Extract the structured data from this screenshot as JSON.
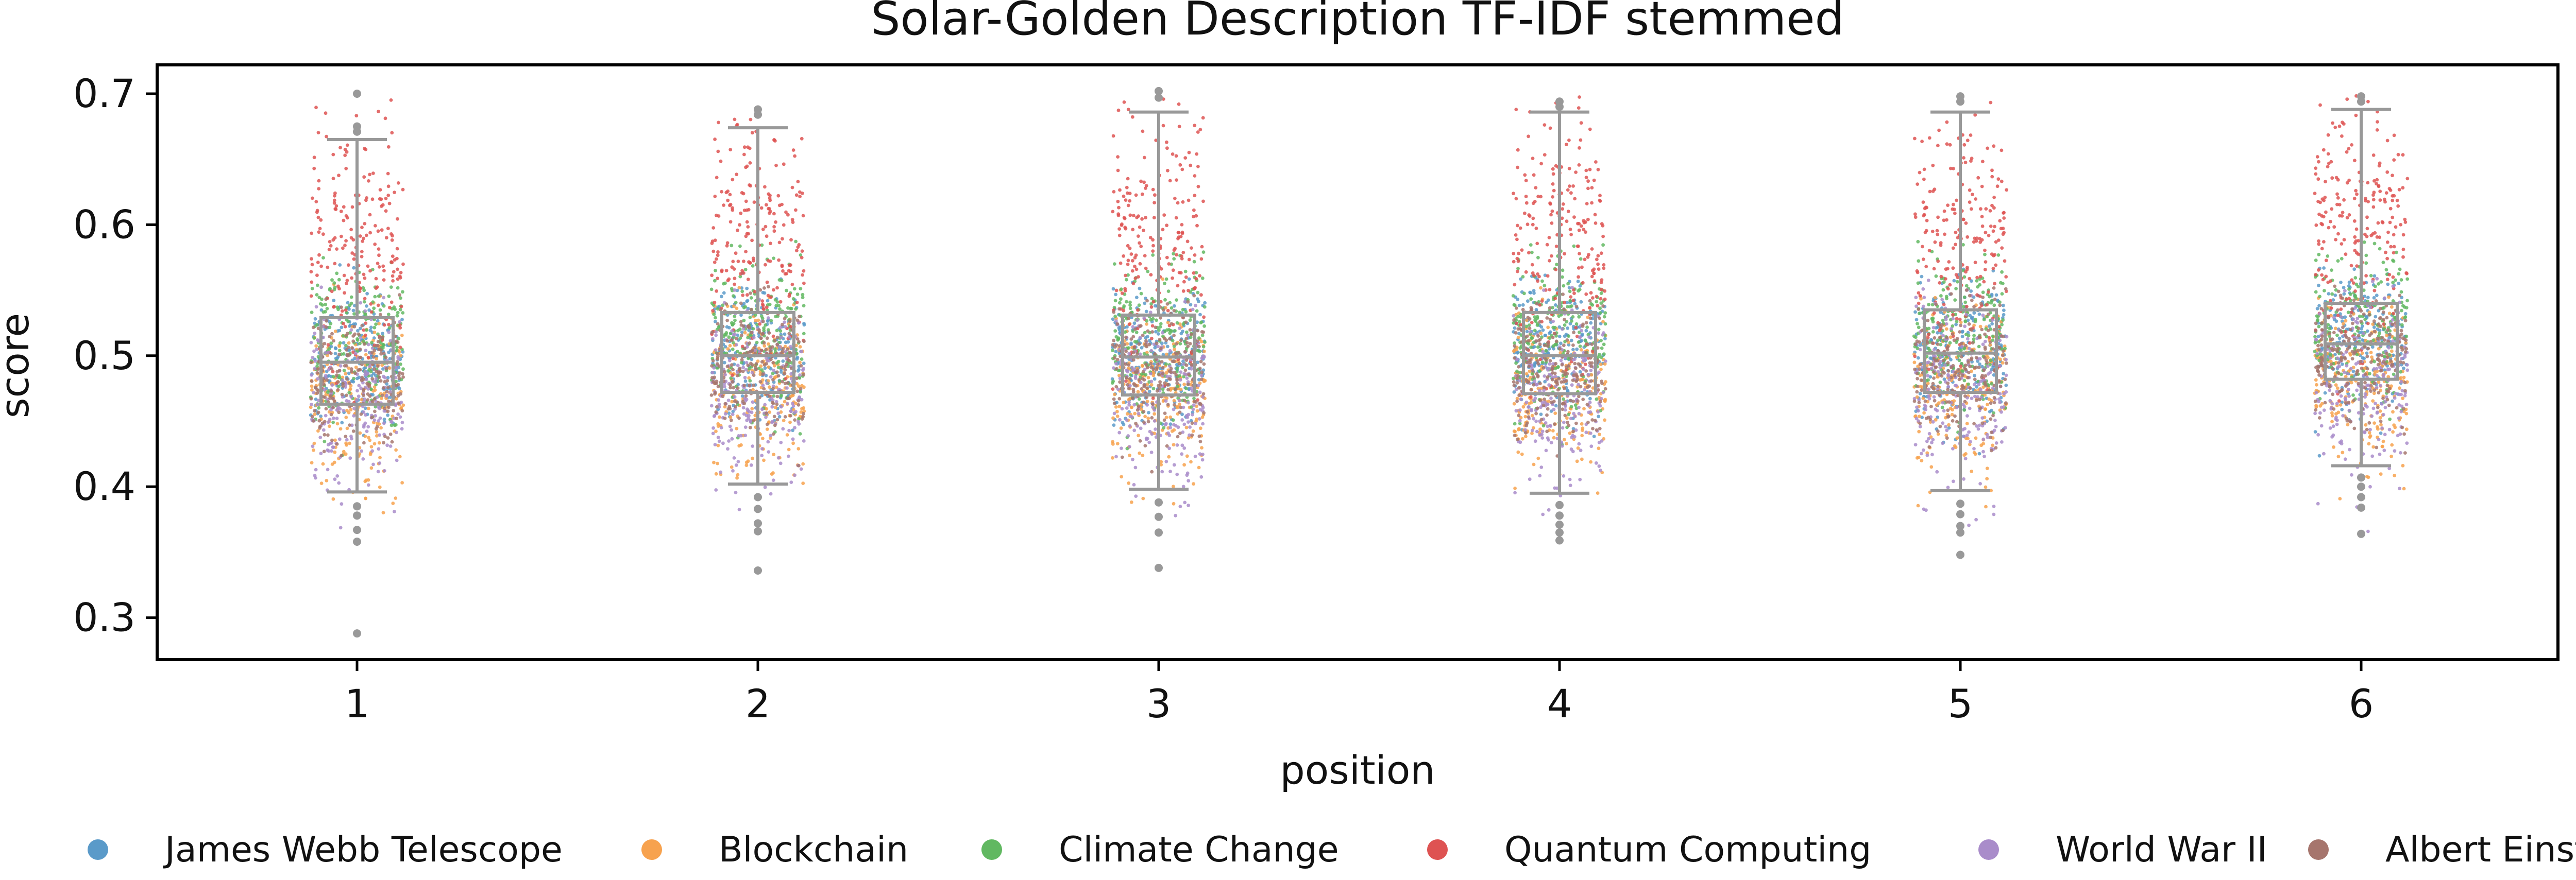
{
  "chart_data": {
    "type": "box-strip",
    "title": "Solar-Golden Description TF-IDF stemmed",
    "xlabel": "position",
    "ylabel": "score",
    "categories": [
      "1",
      "2",
      "3",
      "4",
      "5",
      "6"
    ],
    "ylim": [
      0.268,
      0.722
    ],
    "yticks": [
      0.3,
      0.4,
      0.5,
      0.6,
      0.7
    ],
    "ytick_labels": [
      "0.3",
      "0.4",
      "0.5",
      "0.6",
      "0.7"
    ],
    "grid": false,
    "legend_position": "bottom",
    "box_color": "#999999",
    "boxes": [
      {
        "category": "1",
        "whisker_low": 0.396,
        "q1": 0.463,
        "median": 0.495,
        "q3": 0.529,
        "whisker_high": 0.665,
        "outliers": [
          0.7,
          0.675,
          0.671,
          0.385,
          0.378,
          0.367,
          0.358,
          0.288
        ]
      },
      {
        "category": "2",
        "whisker_low": 0.402,
        "q1": 0.472,
        "median": 0.5,
        "q3": 0.533,
        "whisker_high": 0.674,
        "outliers": [
          0.688,
          0.684,
          0.392,
          0.383,
          0.372,
          0.366,
          0.336
        ]
      },
      {
        "category": "3",
        "whisker_low": 0.398,
        "q1": 0.47,
        "median": 0.499,
        "q3": 0.531,
        "whisker_high": 0.686,
        "outliers": [
          0.702,
          0.697,
          0.388,
          0.377,
          0.365,
          0.338
        ]
      },
      {
        "category": "4",
        "whisker_low": 0.395,
        "q1": 0.471,
        "median": 0.5,
        "q3": 0.533,
        "whisker_high": 0.686,
        "outliers": [
          0.694,
          0.69,
          0.386,
          0.378,
          0.371,
          0.365,
          0.359
        ]
      },
      {
        "category": "5",
        "whisker_low": 0.397,
        "q1": 0.472,
        "median": 0.502,
        "q3": 0.535,
        "whisker_high": 0.686,
        "outliers": [
          0.698,
          0.694,
          0.387,
          0.379,
          0.37,
          0.365,
          0.348
        ]
      },
      {
        "category": "6",
        "whisker_low": 0.416,
        "q1": 0.482,
        "median": 0.509,
        "q3": 0.54,
        "whisker_high": 0.688,
        "outliers": [
          0.698,
          0.694,
          0.407,
          0.4,
          0.392,
          0.384,
          0.364
        ]
      }
    ],
    "series": [
      {
        "name": "James Webb Telescope",
        "color": "#5a9ac9",
        "mean": 0.505,
        "sd": 0.028,
        "min": 0.42,
        "max": 0.57
      },
      {
        "name": "Blockchain",
        "color": "#f7a24e",
        "mean": 0.475,
        "sd": 0.032,
        "min": 0.355,
        "max": 0.56
      },
      {
        "name": "Climate Change",
        "color": "#61b861",
        "mean": 0.515,
        "sd": 0.03,
        "min": 0.38,
        "max": 0.59
      },
      {
        "name": "Quantum Computing",
        "color": "#de5352",
        "mean": 0.59,
        "sd": 0.05,
        "min": 0.45,
        "max": 0.7
      },
      {
        "name": "World War II",
        "color": "#a98cca",
        "mean": 0.47,
        "sd": 0.033,
        "min": 0.36,
        "max": 0.56
      },
      {
        "name": "Albert Einstein",
        "color": "#a6756d",
        "mean": 0.49,
        "sd": 0.025,
        "min": 0.4,
        "max": 0.56
      }
    ]
  }
}
